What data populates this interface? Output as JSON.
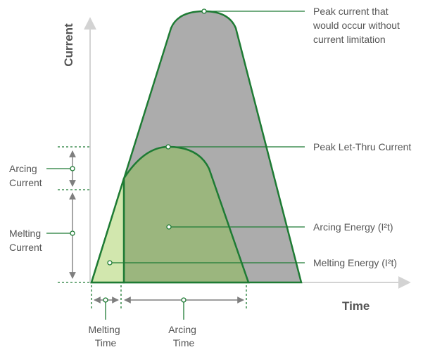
{
  "axes": {
    "y_label": "Current",
    "x_label": "Time"
  },
  "annotations": {
    "peak_current": [
      "Peak current that",
      "would occur without",
      "current limitation"
    ],
    "peak_let_thru": "Peak Let-Thru Current",
    "arcing_energy": "Arcing Energy (I²t)",
    "melting_energy": "Melting Energy (I²t)",
    "arcing_current": [
      "Arcing",
      "Current"
    ],
    "melting_current": [
      "Melting",
      "Current"
    ],
    "melting_time": [
      "Melting",
      "Time"
    ],
    "arcing_time": [
      "Arcing",
      "Time"
    ]
  },
  "colors": {
    "gray_area": "#acacac",
    "green_area": "#9bb67e",
    "light_green_area": "#d2e7ae",
    "outline": "#1e7b34",
    "axis": "#d3d3d3",
    "arrow": "#7f7f7f"
  }
}
